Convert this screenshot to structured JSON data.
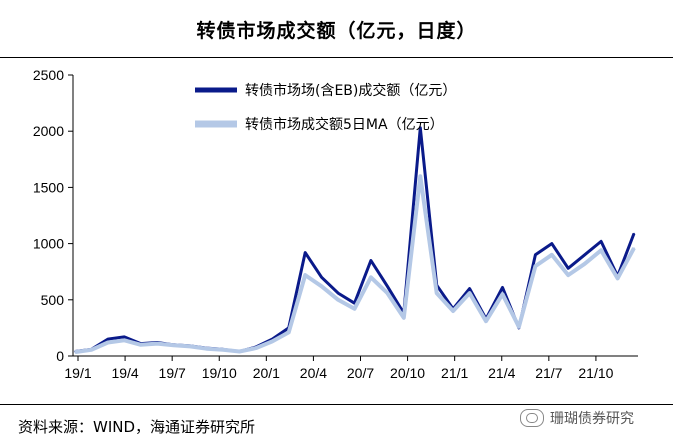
{
  "header": {
    "title": "转债市场成交额（亿元，日度）"
  },
  "footer": {
    "source": "资料来源：WIND，海通证券研究所",
    "watermark": "珊瑚债券研究"
  },
  "chart_data": {
    "type": "line",
    "title": "转债市场成交额（亿元，日度）",
    "xlabel": "",
    "ylabel": "",
    "ylim": [
      0,
      2500
    ],
    "yticks": [
      0,
      500,
      1000,
      1500,
      2000,
      2500
    ],
    "xtick_labels": [
      "19/1",
      "19/4",
      "19/7",
      "19/10",
      "20/1",
      "20/4",
      "20/7",
      "20/10",
      "21/1",
      "21/4",
      "21/7",
      "21/10"
    ],
    "legend_position": "top-center",
    "colors": {
      "daily": "#0a1a8a",
      "ma5": "#b4c8e6"
    },
    "months": [
      "2019-01",
      "2019-02",
      "2019-03",
      "2019-04",
      "2019-05",
      "2019-06",
      "2019-07",
      "2019-08",
      "2019-09",
      "2019-10",
      "2019-11",
      "2019-12",
      "2020-01",
      "2020-02",
      "2020-03",
      "2020-04",
      "2020-05",
      "2020-06",
      "2020-07",
      "2020-08",
      "2020-09",
      "2020-10",
      "2020-11",
      "2020-12",
      "2021-01",
      "2021-02",
      "2021-03",
      "2021-04",
      "2021-05",
      "2021-06",
      "2021-07",
      "2021-08",
      "2021-09",
      "2021-10",
      "2021-11"
    ],
    "series": [
      {
        "name": "转债市场场(含EB)成交额（亿元）",
        "values": [
          40,
          60,
          150,
          170,
          110,
          120,
          100,
          90,
          70,
          60,
          40,
          80,
          150,
          250,
          920,
          700,
          560,
          470,
          850,
          620,
          380,
          2030,
          630,
          420,
          600,
          330,
          610,
          250,
          900,
          1000,
          780,
          900,
          1020,
          710,
          1090
        ]
      },
      {
        "name": "转债市场成交额5日MA（亿元）",
        "values": [
          35,
          55,
          120,
          140,
          100,
          110,
          95,
          85,
          65,
          55,
          40,
          70,
          130,
          210,
          720,
          620,
          500,
          420,
          700,
          560,
          340,
          1600,
          560,
          400,
          560,
          310,
          550,
          260,
          800,
          900,
          720,
          820,
          940,
          690,
          960
        ]
      }
    ]
  }
}
